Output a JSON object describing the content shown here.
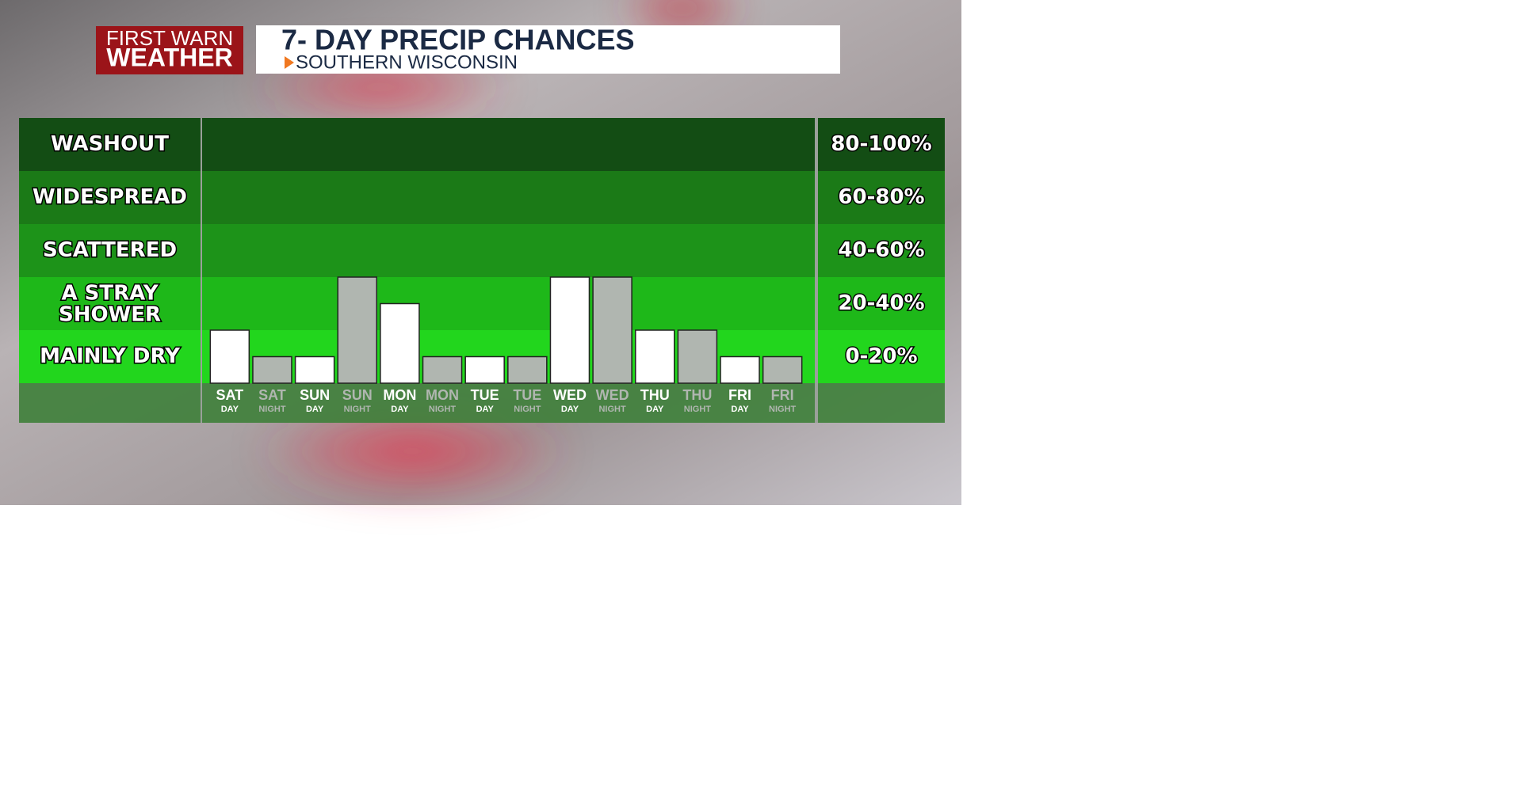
{
  "header": {
    "logo_line1": "FIRST WARN",
    "logo_line2": "WEATHER",
    "title": "7- DAY PRECIP CHANCES",
    "subtitle": "SOUTHERN WISCONSIN"
  },
  "chart_data": {
    "type": "bar",
    "categories": [
      "SAT",
      "SAT",
      "SUN",
      "SUN",
      "MON",
      "MON",
      "TUE",
      "TUE",
      "WED",
      "WED",
      "THU",
      "THU",
      "FRI",
      "FRI"
    ],
    "category_periods": [
      "DAY",
      "NIGHT",
      "DAY",
      "NIGHT",
      "DAY",
      "NIGHT",
      "DAY",
      "NIGHT",
      "DAY",
      "NIGHT",
      "DAY",
      "NIGHT",
      "DAY",
      "NIGHT"
    ],
    "values": [
      20,
      10,
      10,
      40,
      30,
      10,
      10,
      10,
      40,
      40,
      20,
      20,
      10,
      10
    ],
    "colors": [
      "#ffffff",
      "#b0b6b0",
      "#ffffff",
      "#b0b6b0",
      "#ffffff",
      "#b0b6b0",
      "#ffffff",
      "#b0b6b0",
      "#ffffff",
      "#b0b6b0",
      "#ffffff",
      "#b0b6b0",
      "#ffffff",
      "#b0b6b0"
    ],
    "ylim": [
      0,
      100
    ],
    "yticks": [
      0,
      20,
      40,
      60,
      80,
      100
    ],
    "bands": [
      {
        "label": "MAINLY DRY",
        "range": "0-20%",
        "color": "#22d61d"
      },
      {
        "label": "A STRAY SHOWER",
        "range": "20-40%",
        "color": "#1eb819"
      },
      {
        "label": "SCATTERED",
        "range": "40-60%",
        "color": "#1d9319"
      },
      {
        "label": "WIDESPREAD",
        "range": "60-80%",
        "color": "#1b7a17"
      },
      {
        "label": "WASHOUT",
        "range": "80-100%",
        "color": "#134d14"
      }
    ]
  }
}
